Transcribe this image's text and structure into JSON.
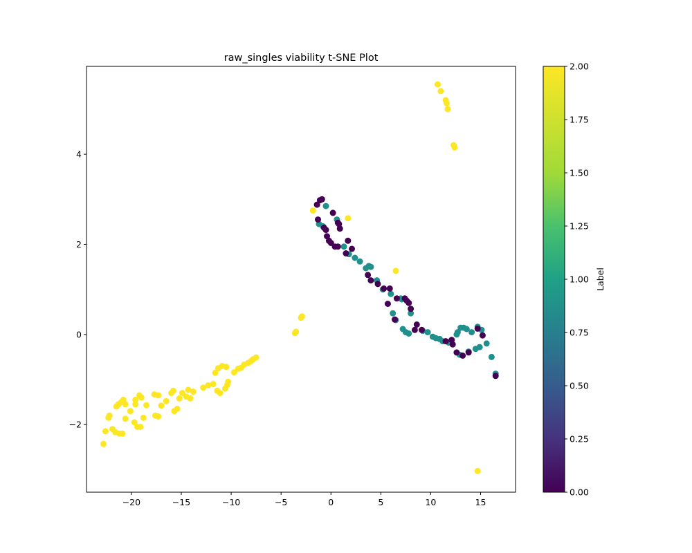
{
  "chart_data": {
    "type": "scatter",
    "title": "raw_singles viability t-SNE Plot",
    "xlabel": "",
    "ylabel": "",
    "xlim": [
      -24.5,
      18.5
    ],
    "ylim": [
      -3.5,
      5.95
    ],
    "xticks": [
      -20,
      -15,
      -10,
      -5,
      0,
      5,
      10,
      15
    ],
    "yticks": [
      -2,
      0,
      2,
      4
    ],
    "grid": false,
    "colorbar": {
      "label": "Label",
      "colormap": "viridis",
      "range": [
        0.0,
        2.0
      ],
      "ticks": [
        "0.00",
        "0.25",
        "0.50",
        "0.75",
        "1.00",
        "1.25",
        "1.50",
        "1.75",
        "2.00"
      ]
    },
    "point_groups": [
      {
        "label_value": 2,
        "color": "#fde725",
        "points": [
          [
            -22.8,
            -2.43
          ],
          [
            -22.6,
            -2.15
          ],
          [
            -22.3,
            -1.85
          ],
          [
            -22.2,
            -1.8
          ],
          [
            -21.9,
            -2.1
          ],
          [
            -21.6,
            -2.17
          ],
          [
            -21.5,
            -1.6
          ],
          [
            -21.3,
            -1.55
          ],
          [
            -21.2,
            -2.2
          ],
          [
            -21.0,
            -1.5
          ],
          [
            -20.9,
            -2.2
          ],
          [
            -20.8,
            -1.45
          ],
          [
            -20.6,
            -1.55
          ],
          [
            -20.6,
            -1.87
          ],
          [
            -20.1,
            -1.7
          ],
          [
            -19.7,
            -1.95
          ],
          [
            -19.6,
            -1.55
          ],
          [
            -19.6,
            -1.45
          ],
          [
            -19.4,
            -2.05
          ],
          [
            -19.2,
            -1.35
          ],
          [
            -19.1,
            -2.05
          ],
          [
            -19.0,
            -1.4
          ],
          [
            -18.8,
            -1.85
          ],
          [
            -18.5,
            -1.57
          ],
          [
            -17.7,
            -1.33
          ],
          [
            -17.6,
            -1.8
          ],
          [
            -17.3,
            -1.35
          ],
          [
            -17.3,
            -1.82
          ],
          [
            -17.0,
            -1.58
          ],
          [
            -16.5,
            -1.48
          ],
          [
            -16.0,
            -1.3
          ],
          [
            -15.8,
            -1.25
          ],
          [
            -15.7,
            -1.7
          ],
          [
            -15.4,
            -1.65
          ],
          [
            -15.2,
            -1.42
          ],
          [
            -14.9,
            -1.3
          ],
          [
            -14.5,
            -1.38
          ],
          [
            -14.3,
            -1.23
          ],
          [
            -14.1,
            -1.42
          ],
          [
            -13.8,
            -1.27
          ],
          [
            -12.8,
            -1.18
          ],
          [
            -12.3,
            -1.13
          ],
          [
            -11.8,
            -1.1
          ],
          [
            -11.6,
            -0.85
          ],
          [
            -11.4,
            -1.25
          ],
          [
            -11.3,
            -0.75
          ],
          [
            -11.1,
            -1.3
          ],
          [
            -10.9,
            -0.7
          ],
          [
            -10.6,
            -1.2
          ],
          [
            -10.5,
            -0.72
          ],
          [
            -10.4,
            -1.12
          ],
          [
            -10.3,
            -1.05
          ],
          [
            -9.7,
            -0.84
          ],
          [
            -9.3,
            -0.76
          ],
          [
            -9.0,
            -0.74
          ],
          [
            -8.7,
            -0.67
          ],
          [
            -8.3,
            -0.63
          ],
          [
            -8.0,
            -0.59
          ],
          [
            -7.8,
            -0.55
          ],
          [
            -7.5,
            -0.51
          ],
          [
            -3.6,
            0.03
          ],
          [
            -3.5,
            0.06
          ],
          [
            -3.0,
            0.37
          ],
          [
            -2.9,
            0.4
          ],
          [
            -1.8,
            2.75
          ],
          [
            1.7,
            2.58
          ],
          [
            6.5,
            1.41
          ],
          [
            10.7,
            5.55
          ],
          [
            11.0,
            5.4
          ],
          [
            11.5,
            5.2
          ],
          [
            11.6,
            5.13
          ],
          [
            11.7,
            5.0
          ],
          [
            12.3,
            4.2
          ],
          [
            12.4,
            4.15
          ],
          [
            14.7,
            -3.03
          ]
        ]
      },
      {
        "label_value": 1,
        "color": "#21908d",
        "points": [
          [
            -1.2,
            2.45
          ],
          [
            -0.8,
            2.4
          ],
          [
            -0.5,
            2.85
          ],
          [
            0.6,
            2.55
          ],
          [
            1.3,
            1.95
          ],
          [
            1.8,
            1.78
          ],
          [
            2.4,
            1.7
          ],
          [
            2.9,
            1.62
          ],
          [
            3.5,
            1.47
          ],
          [
            3.8,
            1.52
          ],
          [
            4.0,
            1.5
          ],
          [
            4.6,
            1.2
          ],
          [
            5.2,
            1.0
          ],
          [
            6.0,
            0.9
          ],
          [
            6.2,
            0.47
          ],
          [
            6.5,
            0.32
          ],
          [
            7.0,
            0.8
          ],
          [
            7.1,
            0.78
          ],
          [
            7.2,
            0.12
          ],
          [
            7.5,
            0.05
          ],
          [
            7.8,
            0.02
          ],
          [
            8.0,
            0.47
          ],
          [
            9.2,
            0.08
          ],
          [
            9.7,
            0.05
          ],
          [
            10.2,
            -0.05
          ],
          [
            10.5,
            -0.08
          ],
          [
            10.9,
            -0.1
          ],
          [
            11.2,
            -0.15
          ],
          [
            11.8,
            -0.18
          ],
          [
            12.6,
            0.0
          ],
          [
            12.7,
            0.05
          ],
          [
            12.9,
            -0.45
          ],
          [
            13.0,
            0.15
          ],
          [
            13.3,
            0.15
          ],
          [
            13.6,
            0.12
          ],
          [
            13.8,
            -0.38
          ],
          [
            14.1,
            0.05
          ],
          [
            14.5,
            -0.32
          ],
          [
            14.7,
            0.17
          ],
          [
            14.9,
            -0.28
          ],
          [
            15.1,
            0.1
          ],
          [
            15.6,
            -0.2
          ],
          [
            16.1,
            -0.5
          ],
          [
            16.5,
            -0.87
          ]
        ]
      },
      {
        "label_value": 0,
        "color": "#440154",
        "points": [
          [
            -1.4,
            2.88
          ],
          [
            -1.3,
            2.55
          ],
          [
            -1.1,
            2.98
          ],
          [
            -0.9,
            3.0
          ],
          [
            -0.7,
            2.37
          ],
          [
            -0.5,
            2.32
          ],
          [
            -0.4,
            2.18
          ],
          [
            -0.2,
            2.08
          ],
          [
            0.0,
            2.03
          ],
          [
            0.2,
            2.7
          ],
          [
            0.4,
            1.95
          ],
          [
            0.7,
            1.95
          ],
          [
            0.7,
            2.48
          ],
          [
            0.8,
            2.45
          ],
          [
            0.9,
            2.35
          ],
          [
            1.5,
            1.8
          ],
          [
            1.7,
            2.08
          ],
          [
            2.1,
            1.9
          ],
          [
            3.7,
            1.32
          ],
          [
            4.0,
            1.2
          ],
          [
            4.7,
            1.12
          ],
          [
            5.3,
            1.02
          ],
          [
            5.7,
            0.68
          ],
          [
            5.9,
            1.02
          ],
          [
            6.4,
            0.33
          ],
          [
            6.6,
            0.8
          ],
          [
            7.4,
            0.8
          ],
          [
            7.6,
            0.75
          ],
          [
            7.8,
            0.7
          ],
          [
            8.0,
            0.57
          ],
          [
            8.4,
            0.1
          ],
          [
            8.6,
            0.22
          ],
          [
            9.1,
            0.1
          ],
          [
            11.5,
            -0.15
          ],
          [
            12.1,
            -0.12
          ],
          [
            12.2,
            -0.22
          ],
          [
            12.6,
            -0.4
          ],
          [
            13.2,
            -0.47
          ],
          [
            13.8,
            -0.4
          ],
          [
            14.7,
            0.13
          ],
          [
            15.2,
            -0.02
          ],
          [
            16.5,
            -0.92
          ]
        ]
      }
    ]
  }
}
